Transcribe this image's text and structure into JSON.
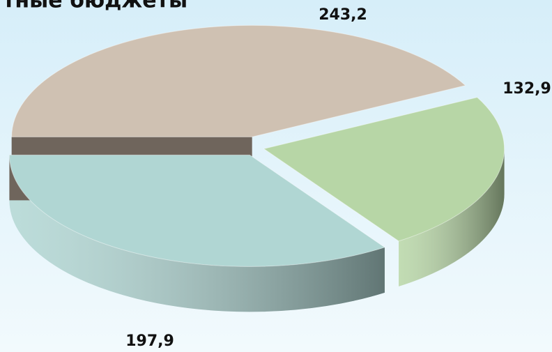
{
  "chart_data": {
    "type": "pie",
    "title": "тные бюджеты",
    "categories": [
      null,
      null,
      null
    ],
    "values": [
      243.2,
      132.9,
      197.9
    ],
    "value_labels": [
      "243,2",
      "132,9",
      "197,9"
    ],
    "colors": [
      "#cfc1b2",
      "#b7d6a6",
      "#b0d6d3"
    ]
  }
}
